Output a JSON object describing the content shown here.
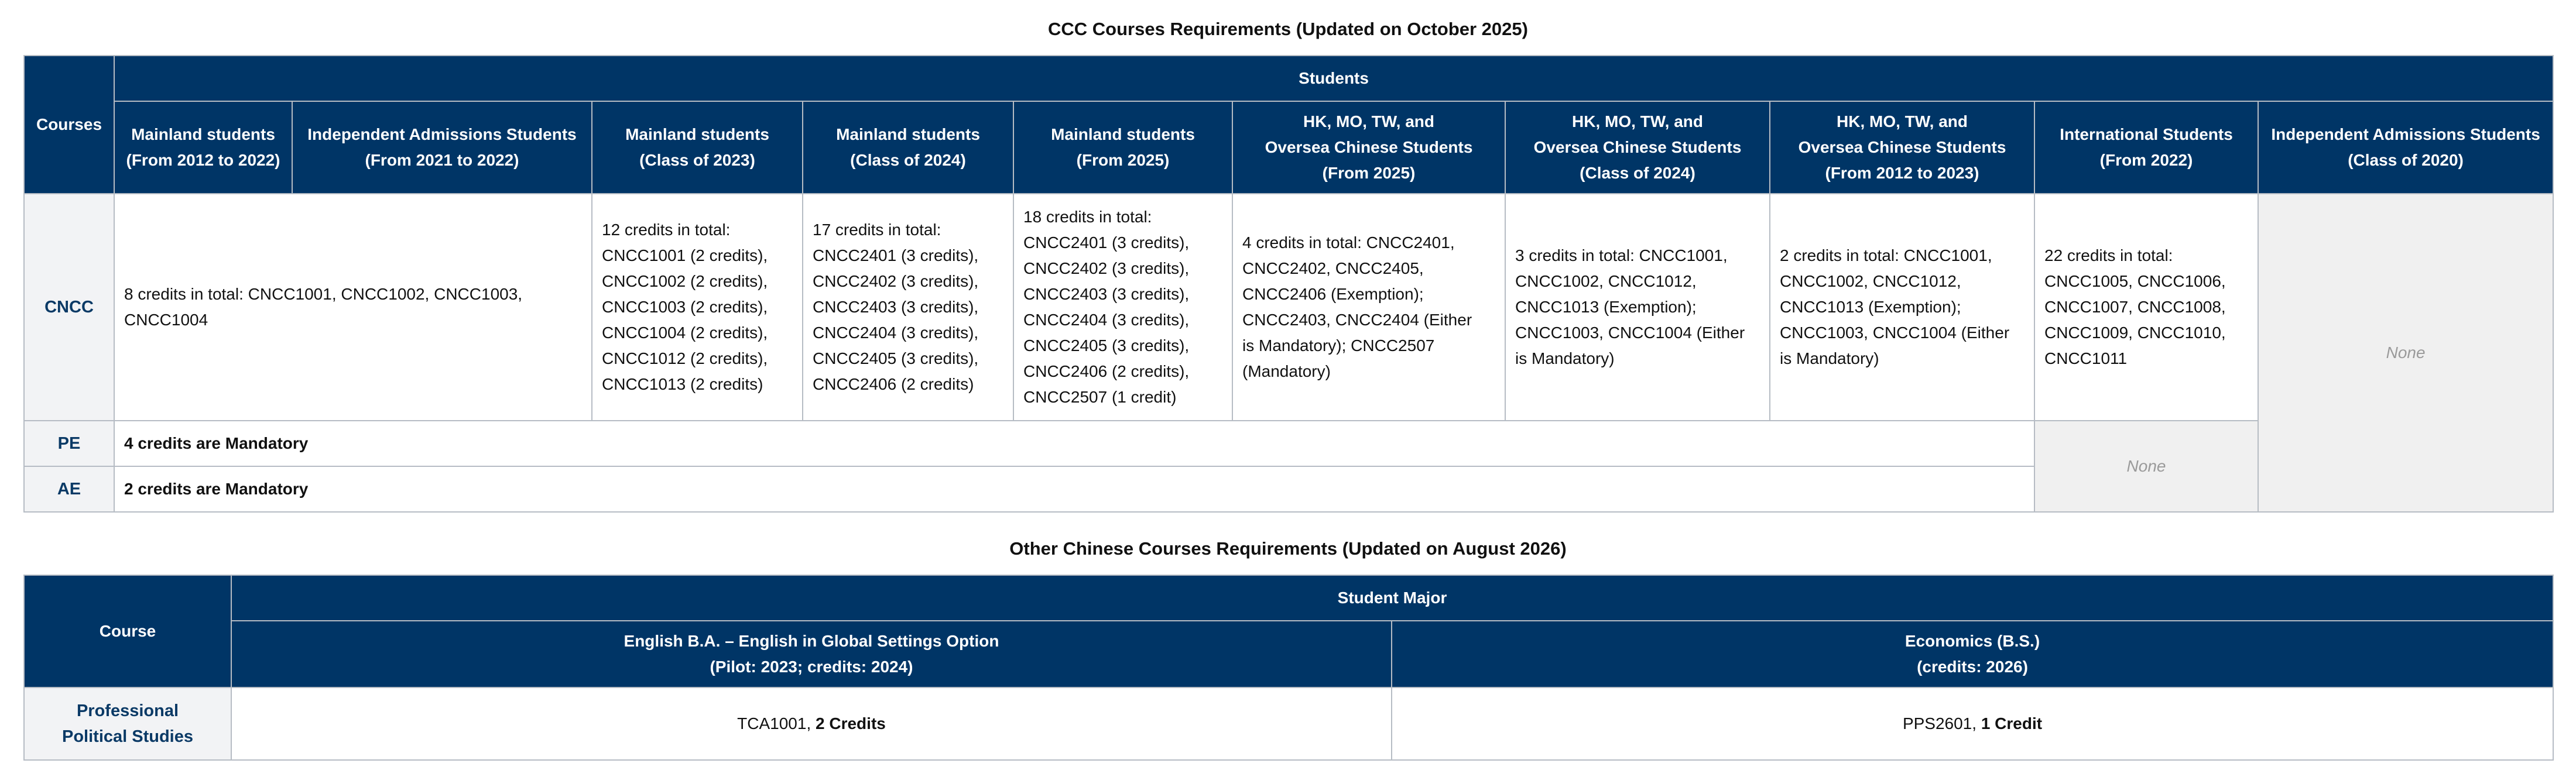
{
  "table1": {
    "title": "CCC Courses Requirements (Updated on October 2025)",
    "corner": "Courses",
    "group_header": "Students",
    "columns": [
      {
        "l1": "Mainland students",
        "l2": "(From 2012 to 2022)"
      },
      {
        "l1": "Independent Admissions Students",
        "l2": "(From 2021 to 2022)"
      },
      {
        "l1": "Mainland students",
        "l2": "(Class of 2023)"
      },
      {
        "l1": "Mainland students",
        "l2": "(Class of 2024)"
      },
      {
        "l1": "Mainland students",
        "l2": "(From 2025)"
      },
      {
        "l1": "HK, MO, TW, and",
        "l2": "Oversea Chinese Students",
        "l3": "(From 2025)"
      },
      {
        "l1": "HK, MO, TW, and",
        "l2": "Oversea Chinese Students",
        "l3": "(Class of 2024)"
      },
      {
        "l1": "HK, MO, TW, and",
        "l2": "Oversea Chinese Students",
        "l3": "(From 2012 to 2023)"
      },
      {
        "l1": "International Students",
        "l2": "(From 2022)"
      },
      {
        "l1": "Independent Admissions Students",
        "l2": "(Class of 2020)"
      }
    ],
    "rows": {
      "cncc": {
        "label": "CNCC",
        "c1": [
          "8 credits in total: CNCC1001, CNCC1002, CNCC1003,",
          "CNCC1004"
        ],
        "c2": [
          "12 credits in total:",
          "CNCC1001 (2 credits),",
          "CNCC1002 (2 credits),",
          "CNCC1003 (2 credits),",
          "CNCC1004 (2 credits),",
          "CNCC1012 (2 credits),",
          "CNCC1013 (2 credits)"
        ],
        "c3": [
          "17 credits in total:",
          "CNCC2401 (3 credits),",
          "CNCC2402 (3 credits),",
          "CNCC2403 (3 credits),",
          "CNCC2404 (3 credits),",
          "CNCC2405 (3 credits),",
          "CNCC2406 (2 credits)"
        ],
        "c4": [
          "18 credits in total:",
          "CNCC2401 (3 credits),",
          "CNCC2402 (3 credits),",
          "CNCC2403 (3 credits),",
          "CNCC2404 (3 credits),",
          "CNCC2405 (3 credits),",
          "CNCC2406 (2 credits),",
          "CNCC2507 (1 credit)"
        ],
        "c5": [
          "4 credits in total: CNCC2401,",
          "CNCC2402, CNCC2405,",
          "CNCC2406 (Exemption);",
          "CNCC2403, CNCC2404 (Either",
          "is Mandatory); CNCC2507",
          "(Mandatory)"
        ],
        "c6": [
          "3 credits in total: CNCC1001,",
          "CNCC1002, CNCC1012,",
          "CNCC1013 (Exemption);",
          "CNCC1003, CNCC1004 (Either",
          "is Mandatory)"
        ],
        "c7": [
          "2 credits in total: CNCC1001,",
          "CNCC1002, CNCC1012,",
          "CNCC1013 (Exemption);",
          "CNCC1003, CNCC1004 (Either",
          "is Mandatory)"
        ],
        "c8": [
          "22 credits in total:",
          "CNCC1005, CNCC1006,",
          "CNCC1007, CNCC1008,",
          "CNCC1009, CNCC1010,",
          "CNCC1011"
        ],
        "c9": "None"
      },
      "pe": {
        "label": "PE",
        "text": "4 credits are Mandatory"
      },
      "ae": {
        "label": "AE",
        "text": "2 credits are Mandatory"
      },
      "pe_ae_international": "None"
    }
  },
  "table2": {
    "title": "Other Chinese Courses Requirements (Updated on August 2026)",
    "corner": "Course",
    "group_header": "Student Major",
    "columns": [
      {
        "l1": "English B.A. – English in Global Settings Option",
        "l2": "(Pilot: 2023; credits: 2024)"
      },
      {
        "l1": "Economics (B.S.)",
        "l2": "(credits: 2026)"
      }
    ],
    "row": {
      "label_l1": "Professional",
      "label_l2": "Political Studies",
      "c1_code": "TCA1001, ",
      "c1_credits": "2 Credits",
      "c2_code": "PPS2601, ",
      "c2_credits": "1 Credit"
    }
  }
}
